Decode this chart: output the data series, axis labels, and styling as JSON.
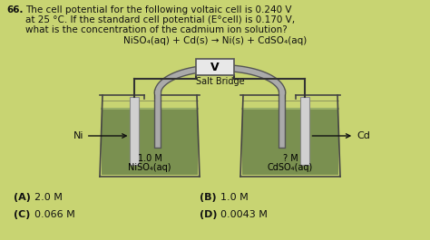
{
  "bg_color": "#c8d472",
  "question_number": "66.",
  "line1": "The cell potential for the following voltaic cell is 0.240 V",
  "line2": "at 25 °C. If the standard cell potential (E°cell) is 0.170 V,",
  "line3": "what is the concentration of the cadmium ion solution?",
  "equation": "NiSO₄(aq) + Cd(s) → Ni(s) + CdSO₄(aq)",
  "voltmeter_label": "V",
  "salt_bridge_label": "Salt Bridge",
  "left_electrode": "Ni",
  "right_electrode": "Cd",
  "left_solution_line1": "1.0 M",
  "left_solution_line2": "NiSO₄(aq)",
  "right_solution_line1": "? M",
  "right_solution_line2": "CdSO₄(aq)",
  "choices": [
    {
      "label": "(A)",
      "value": "2.0 M"
    },
    {
      "label": "(B)",
      "value": "1.0 M"
    },
    {
      "label": "(C)",
      "value": "0.066 M"
    },
    {
      "label": "(D)",
      "value": "0.0043 M"
    }
  ],
  "solution_color": "#7a9050",
  "solution_surface_color": "#9ab068",
  "beaker_outline": "#444444",
  "electrode_color": "#d0d0d0",
  "electrode_edge": "#888888",
  "wire_color": "#333333",
  "voltmeter_bg": "#e8e8e8",
  "salt_bridge_color": "#888888",
  "text_color": "#111111",
  "label_color": "#222222"
}
